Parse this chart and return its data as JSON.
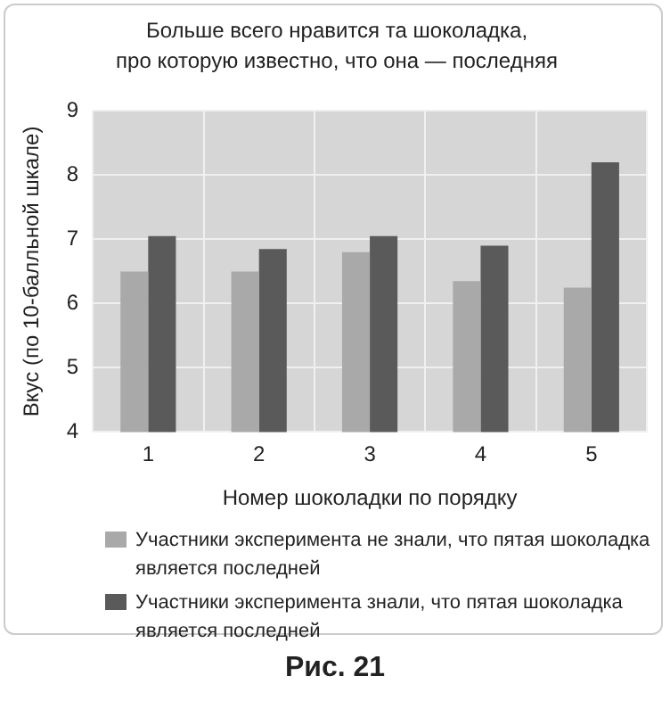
{
  "chart_data": {
    "type": "bar",
    "title": "Больше всего нравится та шоколадка,\nпро которую известно, что она — последняя",
    "xlabel": "Номер шоколадки по порядку",
    "ylabel": "Вкус (по 10-балльной шкале)",
    "categories": [
      "1",
      "2",
      "3",
      "4",
      "5"
    ],
    "series": [
      {
        "name": "Участники эксперимента не знали, что пятая шоколадка является последней",
        "color": "#a9a9a9",
        "values": [
          6.5,
          6.5,
          6.8,
          6.35,
          6.25
        ]
      },
      {
        "name": "Участники эксперимента знали, что пятая шоколадка является последней",
        "color": "#5a5a5a",
        "values": [
          7.05,
          6.85,
          7.05,
          6.9,
          8.2
        ]
      }
    ],
    "ylim": [
      4,
      9
    ],
    "yticks": [
      4,
      5,
      6,
      7,
      8,
      9
    ],
    "grid": true,
    "legend": "bottom",
    "annotations": [
      "Рис. 21"
    ]
  }
}
